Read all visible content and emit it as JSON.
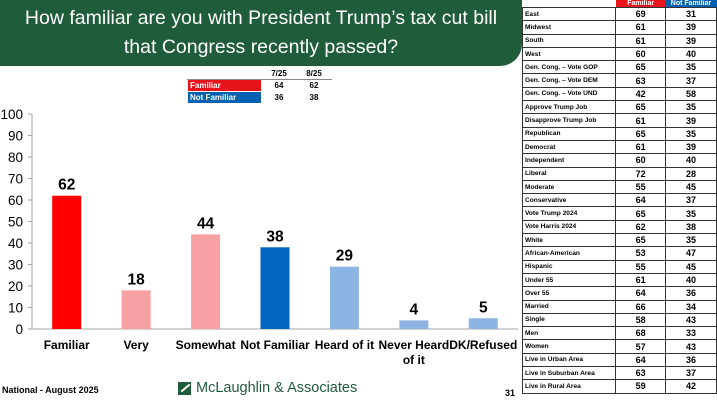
{
  "title": {
    "line1": "How familiar are you with President Trump’s tax cut bill",
    "line2": "that Congress recently passed?"
  },
  "mini_table": {
    "headers": [
      "",
      "7/25",
      "8/25"
    ],
    "rows": [
      {
        "label": "Familiar",
        "v1": "64",
        "v2": "62",
        "color": "#e8141b"
      },
      {
        "label": "Not Familiar",
        "v1": "36",
        "v2": "38",
        "color": "#0060b0"
      }
    ]
  },
  "chart_data": {
    "type": "bar",
    "categories": [
      "Familiar",
      "Very",
      "Somewhat",
      "Not Familiar",
      "Heard of it",
      "Never Heard of it",
      "DK/Refused"
    ],
    "category_lines": [
      [
        "Familiar"
      ],
      [
        "Very"
      ],
      [
        "Somewhat"
      ],
      [
        "Not Familiar"
      ],
      [
        "Heard of it"
      ],
      [
        "Never Heard",
        "of it"
      ],
      [
        "DK/Refused"
      ]
    ],
    "values": [
      62,
      18,
      44,
      38,
      29,
      4,
      5
    ],
    "colors": [
      "#ff0000",
      "#f7a0a3",
      "#f7a0a3",
      "#0066bf",
      "#8eb4e3",
      "#8eb4e3",
      "#8eb4e3"
    ],
    "ylim": [
      0,
      100
    ],
    "yticks": [
      0,
      10,
      20,
      30,
      40,
      50,
      60,
      70,
      80,
      90,
      100
    ],
    "grid": false,
    "title": "",
    "xlabel": "",
    "ylabel": ""
  },
  "footer": {
    "left": "National - August 2025",
    "logo": "McLaughlin & Associates",
    "page": "31"
  },
  "side_table": {
    "headers": [
      "",
      "Familiar",
      "Not Familiar"
    ],
    "header_colors": {
      "familiar": "#e8141b",
      "not_familiar": "#0060b0"
    },
    "rows": [
      {
        "label": "East",
        "f": "69",
        "n": "31"
      },
      {
        "label": "Midwest",
        "f": "61",
        "n": "39"
      },
      {
        "label": "South",
        "f": "61",
        "n": "39"
      },
      {
        "label": "West",
        "f": "60",
        "n": "40"
      },
      {
        "label": "Gen. Cong. – Vote GOP",
        "f": "65",
        "n": "35"
      },
      {
        "label": "Gen. Cong. – Vote DEM",
        "f": "63",
        "n": "37"
      },
      {
        "label": "Gen. Cong. – Vote UND",
        "f": "42",
        "n": "58"
      },
      {
        "label": "Approve Trump Job",
        "f": "65",
        "n": "35"
      },
      {
        "label": "Disapprove Trump Job",
        "f": "61",
        "n": "39"
      },
      {
        "label": "Republican",
        "f": "65",
        "n": "35"
      },
      {
        "label": "Democrat",
        "f": "61",
        "n": "39"
      },
      {
        "label": "Independent",
        "f": "60",
        "n": "40"
      },
      {
        "label": "Liberal",
        "f": "72",
        "n": "28"
      },
      {
        "label": "Moderate",
        "f": "55",
        "n": "45"
      },
      {
        "label": "Conservative",
        "f": "64",
        "n": "37"
      },
      {
        "label": "Vote Trump 2024",
        "f": "65",
        "n": "35"
      },
      {
        "label": "Vote Harris 2024",
        "f": "62",
        "n": "38"
      },
      {
        "label": "White",
        "f": "65",
        "n": "35"
      },
      {
        "label": "African-American",
        "f": "53",
        "n": "47"
      },
      {
        "label": "Hispanic",
        "f": "55",
        "n": "45"
      },
      {
        "label": "Under 55",
        "f": "61",
        "n": "40"
      },
      {
        "label": "Over 55",
        "f": "64",
        "n": "36"
      },
      {
        "label": "Married",
        "f": "66",
        "n": "34"
      },
      {
        "label": "Single",
        "f": "58",
        "n": "43"
      },
      {
        "label": "Men",
        "f": "68",
        "n": "33"
      },
      {
        "label": "Women",
        "f": "57",
        "n": "43"
      },
      {
        "label": "Live in Urban Area",
        "f": "64",
        "n": "36"
      },
      {
        "label": "Live in Suburban Area",
        "f": "63",
        "n": "37"
      },
      {
        "label": "Live in Rural Area",
        "f": "59",
        "n": "42"
      }
    ]
  }
}
